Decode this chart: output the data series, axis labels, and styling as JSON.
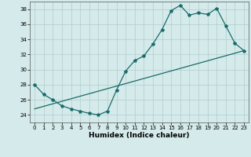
{
  "title": "",
  "xlabel": "Humidex (Indice chaleur)",
  "ylabel": "",
  "background_color": "#d5eaea",
  "grid_color": "#b0cccc",
  "line_color": "#1a6b6b",
  "xlim": [
    -0.5,
    23.5
  ],
  "ylim": [
    23.0,
    39.0
  ],
  "yticks": [
    24,
    26,
    28,
    30,
    32,
    34,
    36,
    38
  ],
  "xticks": [
    0,
    1,
    2,
    3,
    4,
    5,
    6,
    7,
    8,
    9,
    10,
    11,
    12,
    13,
    14,
    15,
    16,
    17,
    18,
    19,
    20,
    21,
    22,
    23
  ],
  "series1_x": [
    0,
    1,
    2,
    3,
    4,
    5,
    6,
    7,
    8,
    9,
    10,
    11,
    12,
    13,
    14,
    15,
    16,
    17,
    18,
    19,
    20,
    21,
    22,
    23
  ],
  "series1_y": [
    28.0,
    26.7,
    26.0,
    25.2,
    24.8,
    24.5,
    24.2,
    24.0,
    24.5,
    27.3,
    29.8,
    31.2,
    31.8,
    33.4,
    35.3,
    37.8,
    38.5,
    37.2,
    37.5,
    37.3,
    38.1,
    35.8,
    33.5,
    32.5
  ],
  "series2_x": [
    0,
    23
  ],
  "series2_y": [
    24.8,
    32.5
  ],
  "marker": "*",
  "markersize": 3,
  "linewidth": 0.9,
  "tick_fontsize": 5.0,
  "xlabel_fontsize": 6.5
}
